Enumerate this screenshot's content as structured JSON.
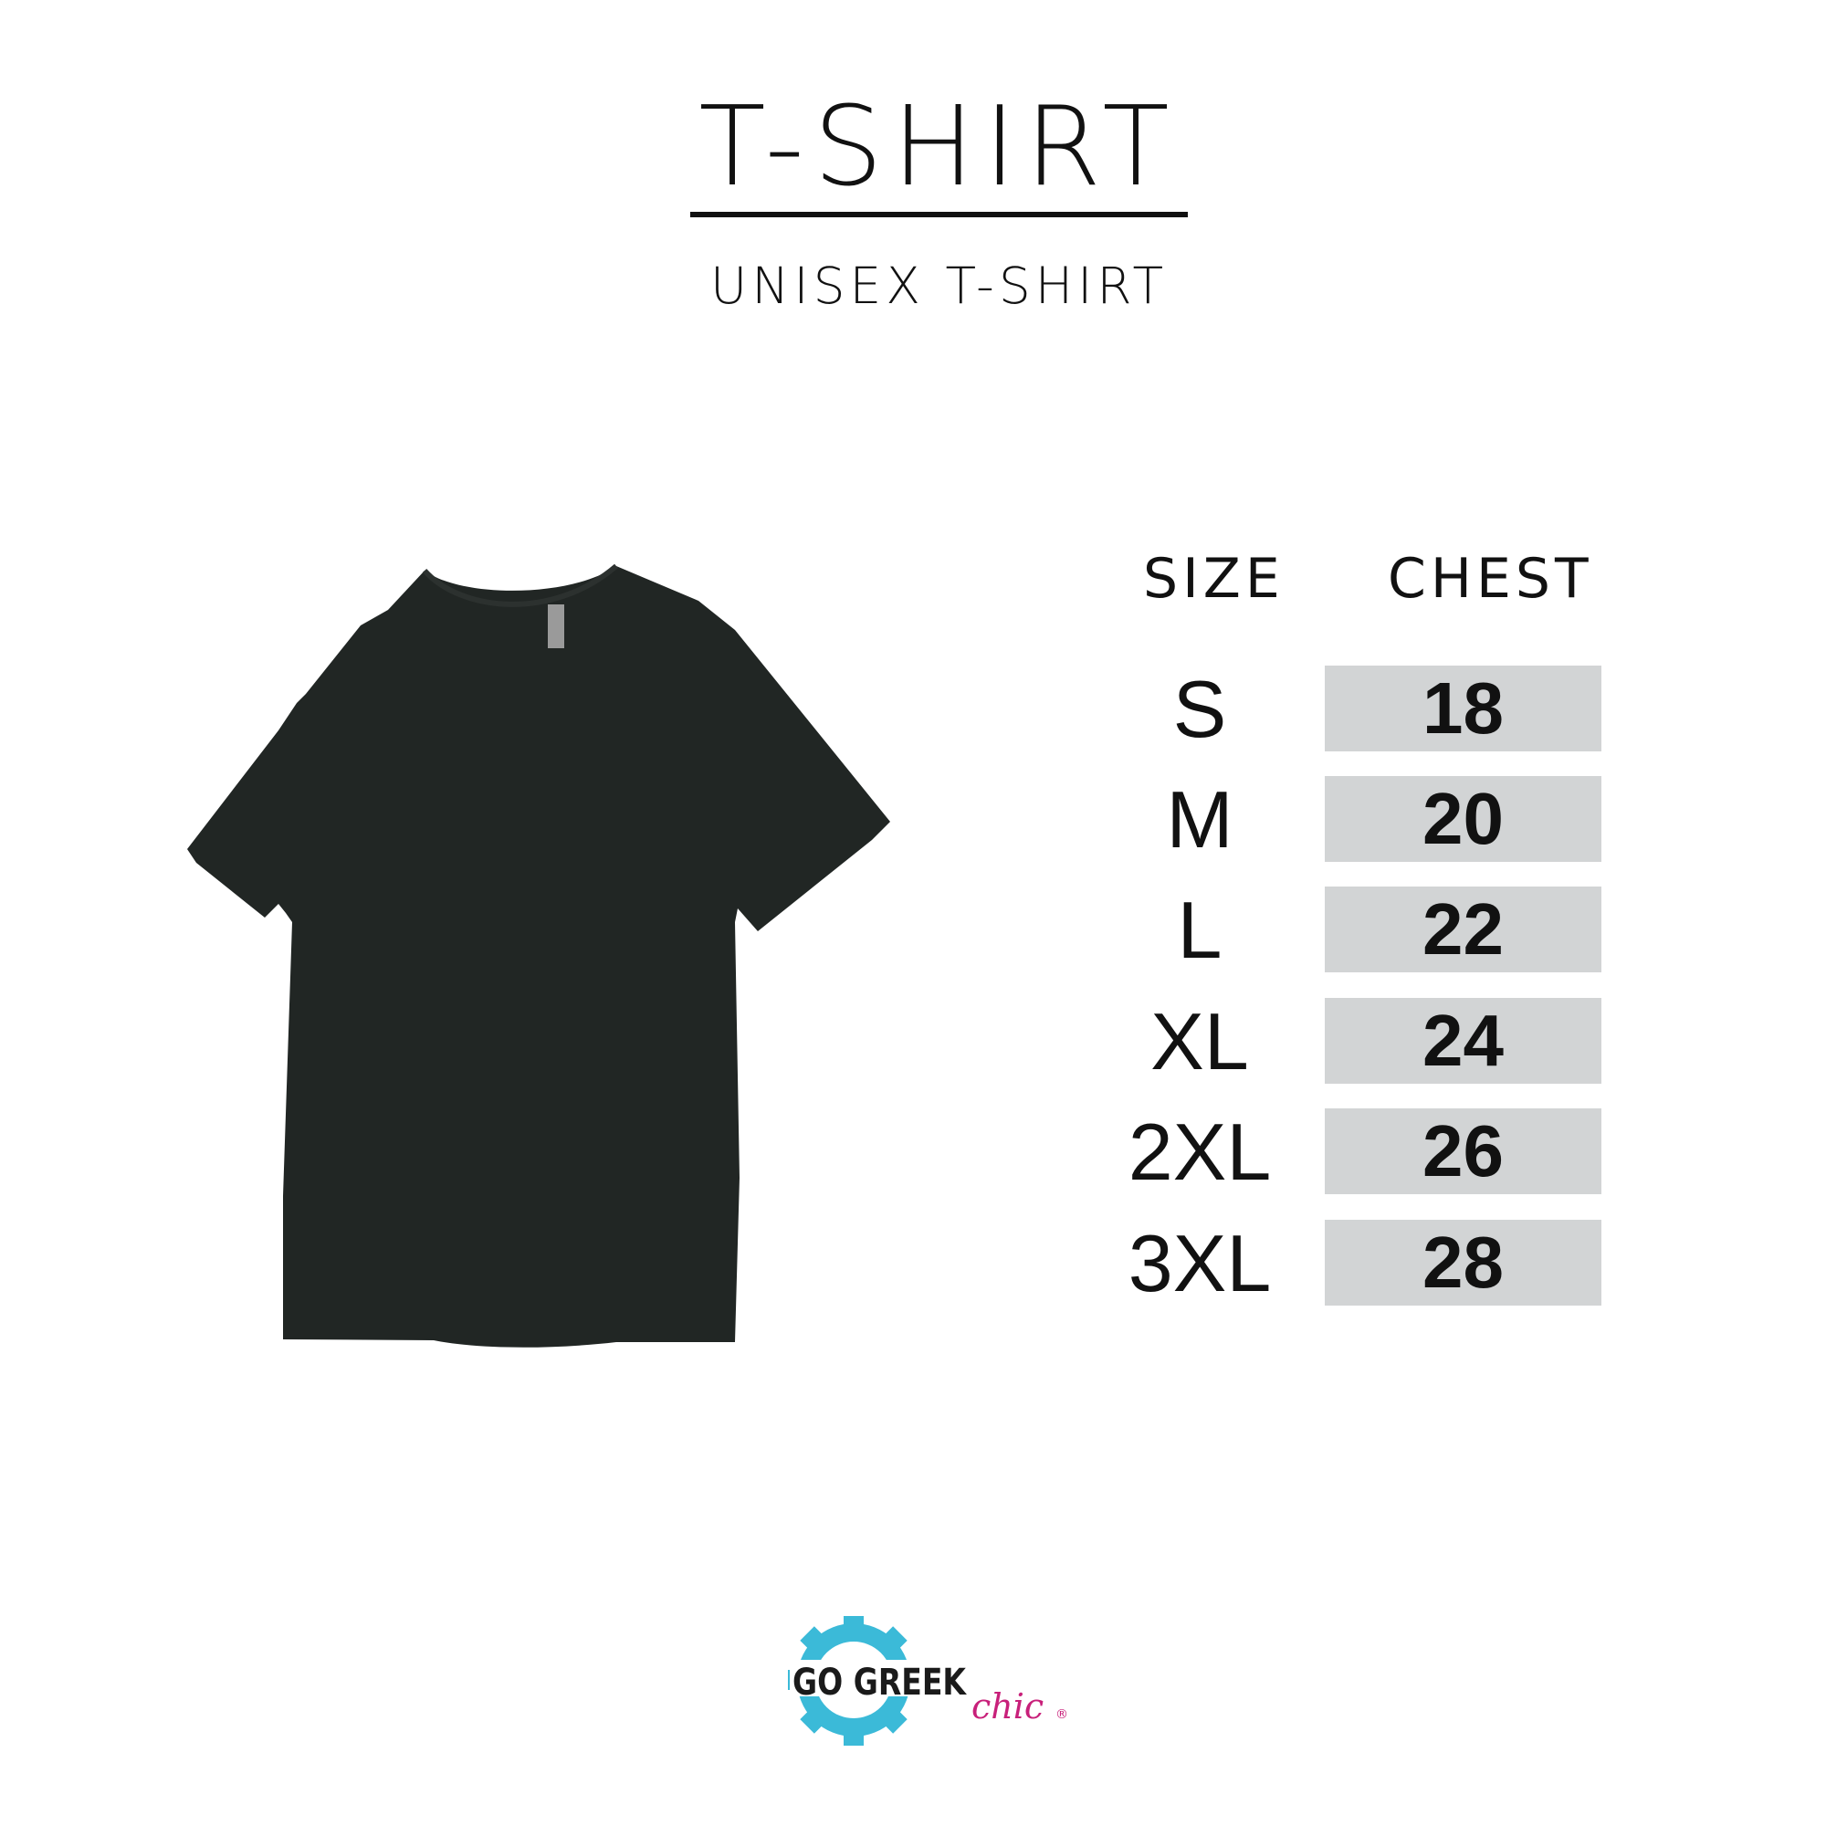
{
  "header": {
    "title": "T-SHIRT",
    "subtitle": "UNISEX T-SHIRT"
  },
  "table": {
    "columns": [
      "SIZE",
      "CHEST"
    ],
    "rows": [
      {
        "size": "S",
        "chest": "18"
      },
      {
        "size": "M",
        "chest": "20"
      },
      {
        "size": "L",
        "chest": "22"
      },
      {
        "size": "XL",
        "chest": "24"
      },
      {
        "size": "2XL",
        "chest": "26"
      },
      {
        "size": "3XL",
        "chest": "28"
      }
    ]
  },
  "product_image": {
    "icon": "tshirt-icon",
    "color": "#212624"
  },
  "logo": {
    "text": "GO GREEK",
    "script": "chic",
    "mark": "®",
    "gear_color": "#3bbad8",
    "script_color": "#c8207a"
  },
  "colors": {
    "cell_bg": "#d2d4d5",
    "text": "#111111"
  }
}
